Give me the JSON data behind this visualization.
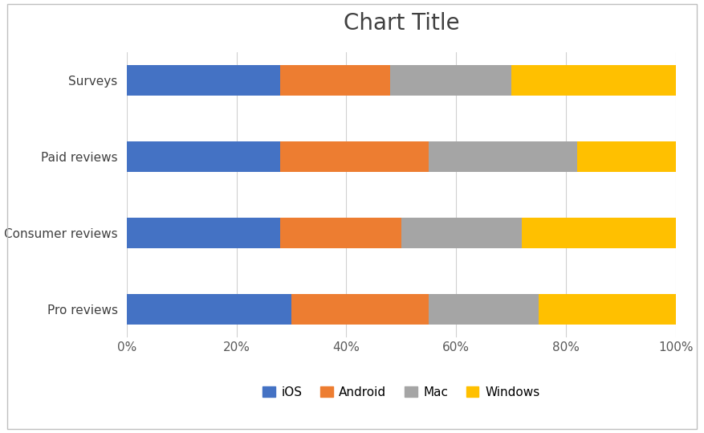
{
  "categories": [
    "Pro reviews",
    "Consumer reviews",
    "Paid reviews",
    "Surveys"
  ],
  "series": {
    "iOS": [
      30,
      28,
      28,
      28
    ],
    "Android": [
      25,
      22,
      27,
      20
    ],
    "Mac": [
      20,
      22,
      27,
      22
    ],
    "Windows": [
      25,
      28,
      18,
      30
    ]
  },
  "colors": {
    "iOS": "#4472C4",
    "Android": "#ED7D31",
    "Mac": "#A5A5A5",
    "Windows": "#FFC000"
  },
  "title": "Chart Title",
  "title_fontsize": 20,
  "xtick_labels": [
    "0%",
    "20%",
    "40%",
    "60%",
    "80%",
    "100%"
  ],
  "xtick_values": [
    0,
    20,
    40,
    60,
    80,
    100
  ],
  "legend_labels": [
    "iOS",
    "Android",
    "Mac",
    "Windows"
  ],
  "background_color": "#FFFFFF",
  "plot_bg_color": "#FFFFFF",
  "gridcolor": "#D0D0D0",
  "bar_height": 0.4,
  "border_color": "#BFBFBF"
}
